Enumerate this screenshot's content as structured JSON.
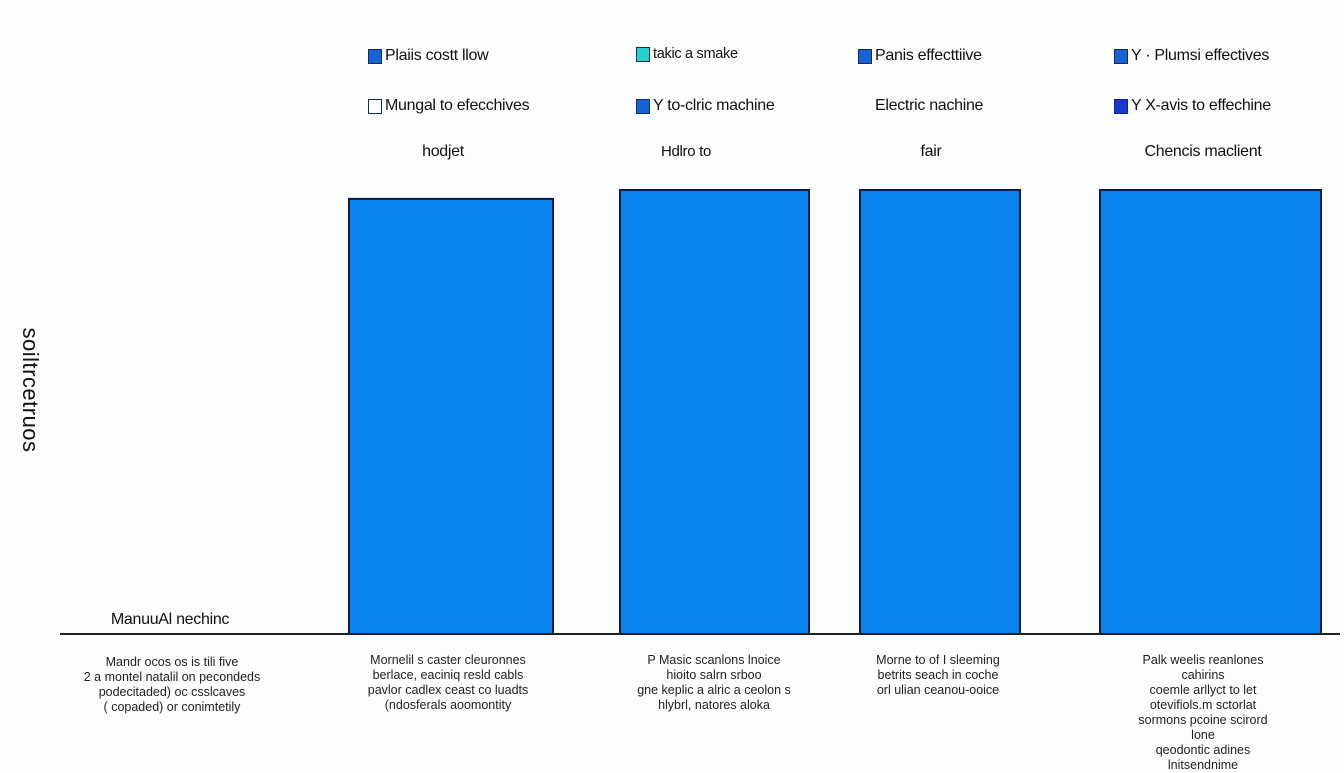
{
  "colors": {
    "bar_fill": "#0a84ee",
    "bar_stroke": "#0b1a3e",
    "axis": "#222222",
    "swatch_blue": "#1464d8",
    "swatch_cyan": "#28d2cc",
    "swatch_white": "#ffffff",
    "swatch_navy": "#1838d0"
  },
  "legend": [
    {
      "label": "Plaiis costt llow",
      "swatch": "swatch_blue"
    },
    {
      "label": "takic a smake",
      "swatch": "swatch_cyan"
    },
    {
      "label": "Panis effecttiive",
      "swatch": "swatch_blue"
    },
    {
      "label": "Y · Plumsi effectives",
      "swatch": "swatch_blue"
    },
    {
      "label": "Mungal to efecchives",
      "swatch": "swatch_white"
    },
    {
      "label": "Y to-clric machine",
      "swatch": "swatch_blue"
    },
    {
      "label": "Electric nachine",
      "swatch": null
    },
    {
      "label": "Y  X-avis to effechine",
      "swatch": "swatch_navy"
    }
  ],
  "chart_data": {
    "type": "bar",
    "title": "",
    "xlabel": "",
    "ylabel": "soiltrcetruos",
    "categories": [
      "ManuuAl nechinc",
      "hodjet",
      "Hdlro to",
      "fair",
      "Chencis maclient"
    ],
    "values": [
      0,
      98,
      100,
      100,
      100
    ],
    "ylim": [
      0,
      100
    ],
    "grid": false,
    "legend_position": "top",
    "descriptions": [
      "Mandr ocos os is tili five\n2 a montel natalil on pecondeds\npodecitaded) oc csslcaves\n( copaded) or conimtetily",
      "Mornelil s caster cleuronnes\nberlace, eaciniq resld cabls\npavlor cadlex ceast co luadts\n(ndosferals aoomontity",
      "P Masic scanlons lnoice\nhioito salrn srboo\ngne keplic a alric a ceolon s\nhlybrl, natores aloka",
      "Morne to of I sleeming\nbetrits seach in coche\norl ulian ceanou-ooice",
      "Palk weelis reanlones cahirins\ncoemle arllyct to let\notevifiols.m sctorlat\nsormons pcoine scirord lone\nqeodontic adines lnitsendnime"
    ]
  }
}
